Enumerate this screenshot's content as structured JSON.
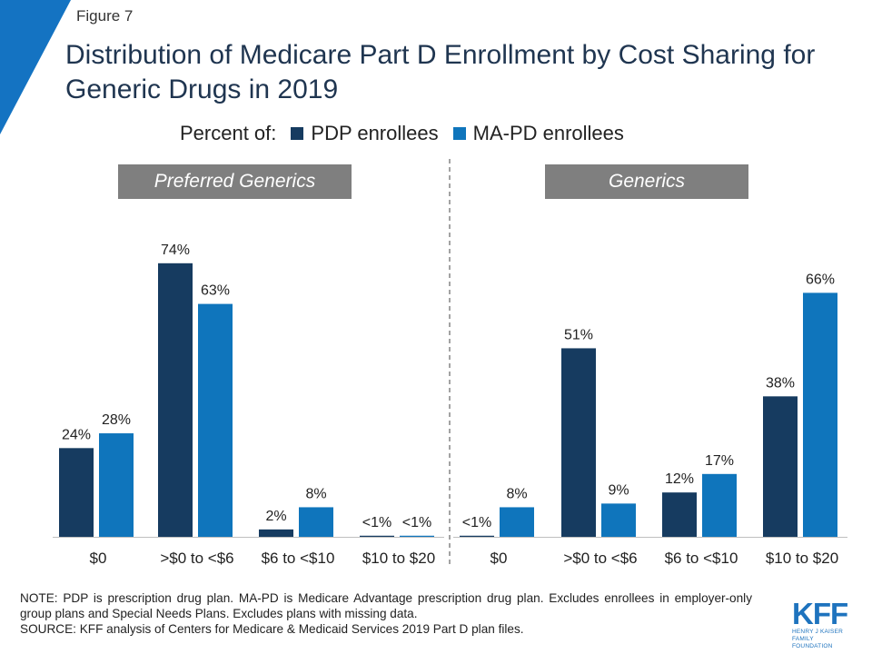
{
  "figure_label": "Figure 7",
  "title": "Distribution of Medicare Part D Enrollment by Cost Sharing for Generic Drugs in 2019",
  "legend": {
    "prefix": "Percent of:",
    "items": [
      {
        "label": "PDP enrollees",
        "color": "#163b60"
      },
      {
        "label": "MA-PD enrollees",
        "color": "#0f75bc"
      }
    ]
  },
  "note": "NOTE: PDP is prescription drug plan. MA-PD is Medicare Advantage prescription drug plan. Excludes enrollees in employer-only group plans and Special Needs Plans. Excludes plans with missing data.",
  "source": "SOURCE: KFF analysis of Centers for Medicare & Medicaid Services 2019 Part D plan files.",
  "logo": {
    "text": "KFF",
    "sub1": "HENRY J KAISER",
    "sub2": "FAMILY FOUNDATION"
  },
  "colors": {
    "accent_corner": "#1473c2",
    "panel_tag": "#7f7f7f"
  },
  "chart_data": [
    {
      "type": "bar",
      "panel_title": "Preferred Generics",
      "categories": [
        "$0",
        ">$0 to <$6",
        "$6 to <$10",
        "$10 to $20"
      ],
      "series": [
        {
          "name": "PDP enrollees",
          "values": [
            24,
            74,
            2,
            0.3
          ],
          "labels": [
            "24%",
            "74%",
            "2%",
            "<1%"
          ]
        },
        {
          "name": "MA-PD enrollees",
          "values": [
            28,
            63,
            8,
            0.3
          ],
          "labels": [
            "28%",
            "63%",
            "8%",
            "<1%"
          ]
        }
      ],
      "ylim": [
        0,
        80
      ]
    },
    {
      "type": "bar",
      "panel_title": "Generics",
      "categories": [
        "$0",
        ">$0 to <$6",
        "$6 to <$10",
        "$10 to $20"
      ],
      "series": [
        {
          "name": "PDP enrollees",
          "values": [
            0.3,
            51,
            12,
            38
          ],
          "labels": [
            "<1%",
            "51%",
            "12%",
            "38%"
          ]
        },
        {
          "name": "MA-PD enrollees",
          "values": [
            8,
            9,
            17,
            66
          ],
          "labels": [
            "8%",
            "9%",
            "17%",
            "66%"
          ]
        }
      ],
      "ylim": [
        0,
        80
      ]
    }
  ]
}
